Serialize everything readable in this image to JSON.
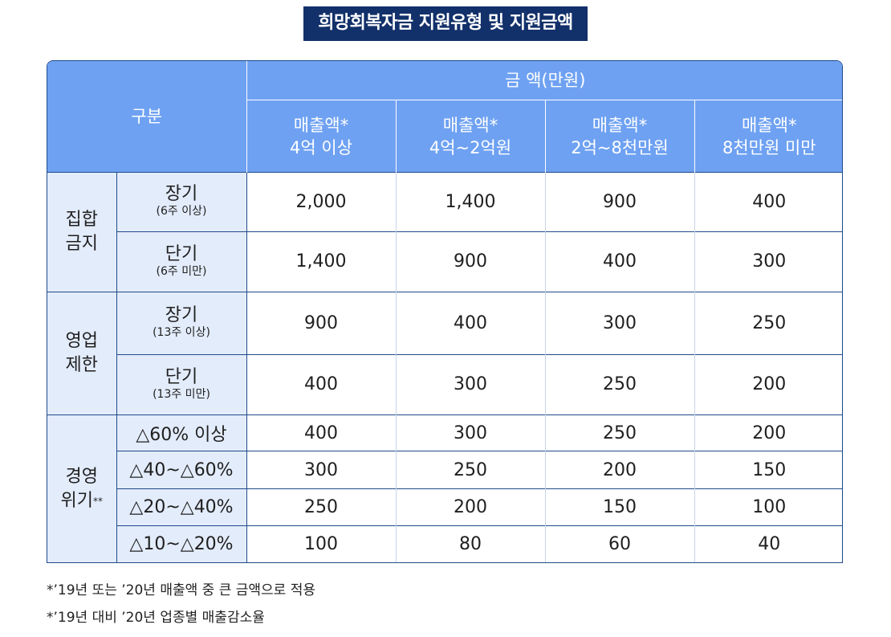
{
  "title": "희망회복자금 지원유형 및 지원금액",
  "header": {
    "category_label": "구분",
    "amount_label": "금 액(만원)",
    "columns": [
      {
        "line1": "매출액*",
        "line2": "4억 이상"
      },
      {
        "line1": "매출액*",
        "line2": "4억~2억원"
      },
      {
        "line1": "매출액*",
        "line2": "2억~8천만원"
      },
      {
        "line1": "매출액*",
        "line2": "8천만원 미만"
      }
    ]
  },
  "groups": [
    {
      "name_line1": "집합",
      "name_line2": "금지",
      "rows": [
        {
          "label": "장기",
          "note": "(6주 이상)",
          "values": [
            "2,000",
            "1,400",
            "900",
            "400"
          ]
        },
        {
          "label": "단기",
          "note": "(6주 미만)",
          "values": [
            "1,400",
            "900",
            "400",
            "300"
          ]
        }
      ]
    },
    {
      "name_line1": "영업",
      "name_line2": "제한",
      "rows": [
        {
          "label": "장기",
          "note": "(13주 이상)",
          "values": [
            "900",
            "400",
            "300",
            "250"
          ]
        },
        {
          "label": "단기",
          "note": "(13주 미만)",
          "values": [
            "400",
            "300",
            "250",
            "200"
          ]
        }
      ]
    },
    {
      "name_line1": "경영",
      "name_line2": "위기",
      "name_sup": "**",
      "rows": [
        {
          "label": "△60% 이상",
          "values": [
            "400",
            "300",
            "250",
            "200"
          ]
        },
        {
          "label": "△40~△60%",
          "values": [
            "300",
            "250",
            "200",
            "150"
          ]
        },
        {
          "label": "△20~△40%",
          "values": [
            "250",
            "200",
            "150",
            "100"
          ]
        },
        {
          "label": "△10~△20%",
          "values": [
            "100",
            "80",
            "60",
            "40"
          ]
        }
      ]
    }
  ],
  "footnotes": [
    "*’19년 또는 ’20년 매출액 중 큰 금액으로 적용",
    "*’19년 대비 ’20년 업종별 매출감소율"
  ],
  "colors": {
    "title_bg": "#12306a",
    "header_bg": "#6ea1f2",
    "category_bg": "#e3ecfb",
    "border": "#1f4a8a"
  }
}
